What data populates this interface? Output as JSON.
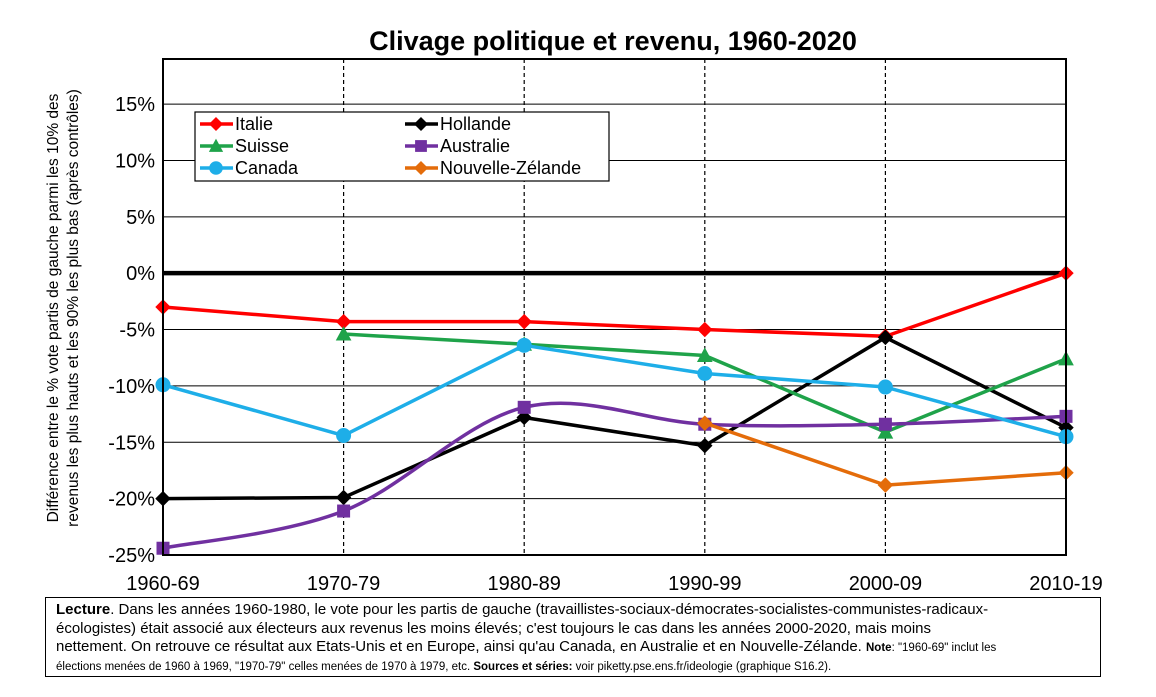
{
  "chart_data": {
    "type": "line",
    "title": "Clivage politique et revenu, 1960-2020",
    "ylabel_line1": "Différence entre le % vote partis de gauche parmi les 10% des",
    "ylabel_line2": "revenus les plus hauts et les 90% les plus bas (après contrôles)",
    "categories": [
      "1960-69",
      "1970-79",
      "1980-89",
      "1990-99",
      "2000-09",
      "2010-19"
    ],
    "ylim": [
      -25,
      19
    ],
    "yticks": [
      {
        "value": 15,
        "label": "15%"
      },
      {
        "value": 10,
        "label": "10%"
      },
      {
        "value": 5,
        "label": "5%"
      },
      {
        "value": 0,
        "label": "0%"
      },
      {
        "value": -5,
        "label": "-5%"
      },
      {
        "value": -10,
        "label": "-10%"
      },
      {
        "value": -15,
        "label": "-15%"
      },
      {
        "value": -20,
        "label": "-20%"
      },
      {
        "value": -25,
        "label": "-25%"
      }
    ],
    "grid": true,
    "legend_position": "top-left",
    "series": [
      {
        "name": "Italie",
        "color": "#ff0000",
        "marker": "diamond",
        "smooth": false,
        "values": [
          -3.0,
          -4.3,
          -4.3,
          -5.0,
          -5.6,
          0.0
        ]
      },
      {
        "name": "Hollande",
        "color": "#000000",
        "marker": "diamond",
        "smooth": false,
        "values": [
          -20.0,
          -19.9,
          -12.8,
          -15.3,
          -5.7,
          -13.7
        ]
      },
      {
        "name": "Suisse",
        "color": "#1fa34a",
        "marker": "triangle",
        "smooth": false,
        "values": [
          null,
          -5.4,
          -6.3,
          -7.3,
          -14.1,
          -7.6
        ]
      },
      {
        "name": "Australie",
        "color": "#7030a0",
        "marker": "square",
        "smooth": true,
        "values": [
          -24.4,
          -21.1,
          -11.9,
          -13.4,
          -13.4,
          -12.7
        ]
      },
      {
        "name": "Canada",
        "color": "#1eaee8",
        "marker": "circle",
        "smooth": false,
        "values": [
          -9.9,
          -14.4,
          -6.4,
          -8.9,
          -10.1,
          -14.5
        ]
      },
      {
        "name": "Nouvelle-Zélande",
        "color": "#e46c0a",
        "marker": "diamond",
        "smooth": false,
        "values": [
          null,
          null,
          null,
          -13.3,
          -18.8,
          -17.7
        ]
      }
    ]
  },
  "note": {
    "lecture_label": "Lecture",
    "line1": ". Dans les années 1960-1980, le vote pour les partis de gauche (travaillistes-sociaux-démocrates-socialistes-communistes-radicaux-",
    "line2": "écologistes) était associé aux électeurs aux revenus les moins élevés; c'est toujours le cas dans les années 2000-2020, mais moins",
    "line3": "nettement. On retrouve ce résultat aux Etats-Unis et en Europe, ainsi qu'au Canada, en Australie et en Nouvelle-Zélande. ",
    "note_label": "Note",
    "note_text": ": \"1960-69\" inclut les",
    "line4": "élections menées de 1960 à 1969, \"1970-79\" celles menées de 1970 à 1979, etc.  ",
    "sources_label": "Sources et séries:",
    "sources_text": " voir piketty.pse.ens.fr/ideologie (graphique S16.2)."
  }
}
